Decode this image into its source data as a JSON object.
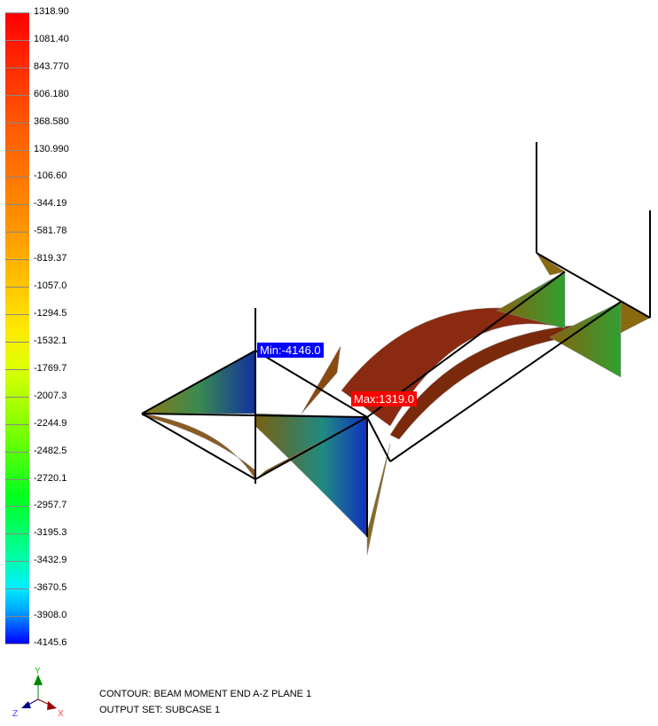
{
  "legend": {
    "values": [
      "1318.90",
      "1081.40",
      "843.770",
      "606.180",
      "368.580",
      "130.990",
      "-106.60",
      "-344.19",
      "-581.78",
      "-819.37",
      "-1057.0",
      "-1294.5",
      "-1532.1",
      "-1769.7",
      "-2007.3",
      "-2244.9",
      "-2482.5",
      "-2720.1",
      "-2957.7",
      "-3195.3",
      "-3432.9",
      "-3670.5",
      "-3908.0",
      "-4145.6"
    ]
  },
  "markers": {
    "min": "Min:-4146.0",
    "max": "Max:1319.0",
    "min_color": "#0000ff",
    "max_color": "#ff0000"
  },
  "info": {
    "contour": "CONTOUR: BEAM MOMENT END A-Z PLANE 1",
    "output_set": "OUTPUT SET: SUBCASE 1"
  },
  "triad": {
    "x": "X",
    "y": "Y",
    "z": "Z"
  }
}
